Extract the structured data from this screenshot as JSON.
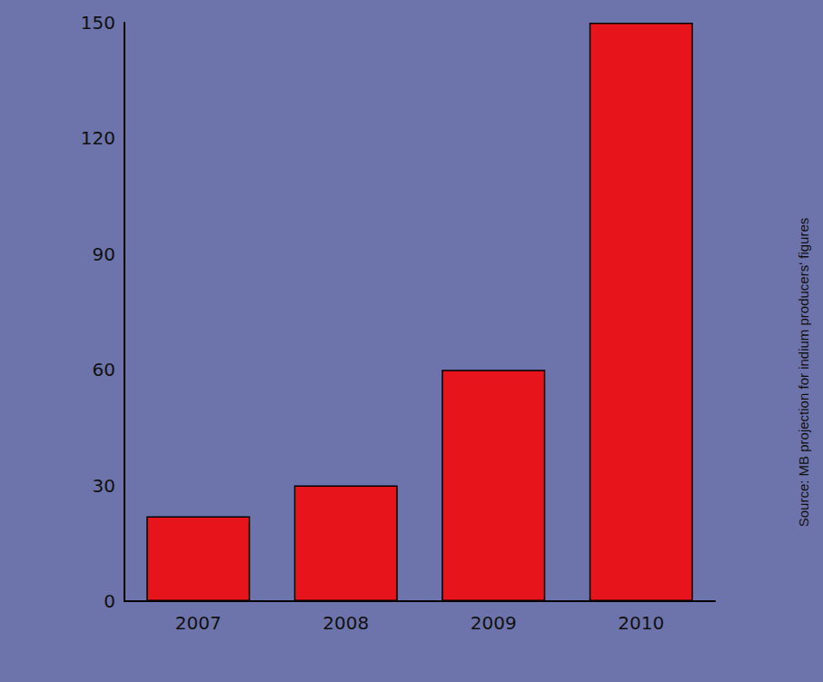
{
  "chart_data": {
    "type": "bar",
    "categories": [
      "2007",
      "2008",
      "2009",
      "2010"
    ],
    "values": [
      22,
      30,
      60,
      150
    ],
    "color": "#e8141b",
    "ylim": [
      0,
      150
    ],
    "yticks": [
      0,
      30,
      60,
      90,
      120,
      150
    ],
    "grid": false,
    "annotations": [
      "Source: MB projection for indium producers' figures"
    ]
  }
}
